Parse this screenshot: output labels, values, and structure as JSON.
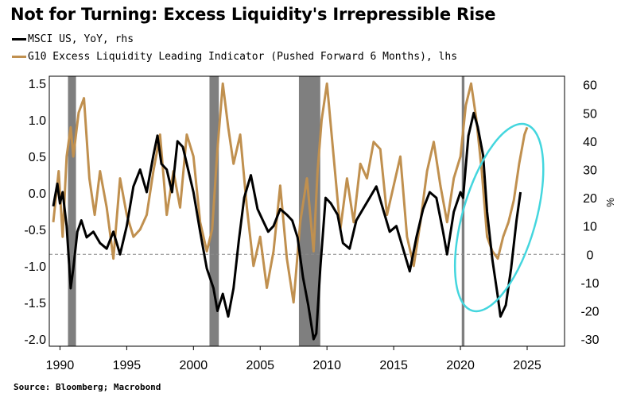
{
  "title": "Not for Turning: Excess Liquidity's Irrepressible Rise",
  "source": "Source: Bloomberg; Macrobond",
  "chart_data": {
    "type": "line",
    "title": "Not for Turning: Excess Liquidity's Irrepressible Rise",
    "xlim": [
      1989.2,
      2027.8
    ],
    "x_ticks": [
      "1990",
      "1995",
      "2000",
      "2005",
      "2010",
      "2015",
      "2020",
      "2025"
    ],
    "left_axis": {
      "ylim": [
        -2.1,
        1.6
      ],
      "ticks": [
        "1.5",
        "1.0",
        "0.5",
        "0.0",
        "-0.5",
        "-1.0",
        "-1.5",
        "-2.0"
      ]
    },
    "right_axis": {
      "ylim": [
        -32.5,
        63
      ],
      "ticks": [
        "60",
        "50",
        "40",
        "30",
        "20",
        "10",
        "0",
        "-10",
        "-20",
        "-30"
      ],
      "unit": "%"
    },
    "zero_line_right": 0,
    "recessions": [
      [
        1990.6,
        1991.2
      ],
      [
        2001.2,
        2001.9
      ],
      [
        2007.9,
        2009.5
      ],
      [
        2020.1,
        2020.3
      ]
    ],
    "annotation": "ellipse highlighting 2021-2025",
    "colors": {
      "msci": "#000000",
      "liquidity": "#c0904f",
      "recession": "#7f7f7f",
      "ellipse": "#44d6de"
    },
    "series": [
      {
        "name": "MSCI US, YoY, rhs",
        "axis": "right",
        "x": [
          1989.5,
          1989.8,
          1990.0,
          1990.2,
          1990.5,
          1990.8,
          1991.0,
          1991.3,
          1991.6,
          1992.0,
          1992.5,
          1993.0,
          1993.5,
          1994.0,
          1994.5,
          1995.0,
          1995.5,
          1996.0,
          1996.5,
          1997.0,
          1997.3,
          1997.6,
          1998.0,
          1998.4,
          1998.8,
          1999.2,
          1999.6,
          2000.0,
          2000.5,
          2001.0,
          2001.5,
          2001.8,
          2002.2,
          2002.6,
          2003.0,
          2003.4,
          2003.8,
          2004.3,
          2004.8,
          2005.2,
          2005.6,
          2006.0,
          2006.5,
          2007.0,
          2007.4,
          2007.8,
          2008.2,
          2008.6,
          2009.0,
          2009.2,
          2009.5,
          2009.9,
          2010.3,
          2010.8,
          2011.2,
          2011.7,
          2012.2,
          2012.7,
          2013.2,
          2013.7,
          2014.2,
          2014.7,
          2015.2,
          2015.7,
          2016.2,
          2016.7,
          2017.2,
          2017.7,
          2018.2,
          2018.7,
          2019.0,
          2019.5,
          2020.0,
          2020.2,
          2020.6,
          2021.0,
          2021.3,
          2021.7,
          2022.0,
          2022.4,
          2022.8,
          2023.0,
          2023.4,
          2023.8,
          2024.2,
          2024.5
        ],
        "values": [
          17,
          25,
          18,
          22,
          10,
          -12,
          -5,
          8,
          12,
          6,
          8,
          4,
          2,
          8,
          0,
          10,
          24,
          30,
          22,
          35,
          42,
          32,
          30,
          22,
          40,
          38,
          30,
          22,
          8,
          -5,
          -12,
          -20,
          -14,
          -22,
          -12,
          5,
          20,
          28,
          16,
          12,
          8,
          10,
          16,
          14,
          12,
          6,
          -8,
          -18,
          -30,
          -28,
          -5,
          20,
          18,
          14,
          4,
          2,
          12,
          16,
          20,
          24,
          16,
          8,
          10,
          2,
          -6,
          6,
          16,
          22,
          20,
          8,
          0,
          15,
          22,
          20,
          42,
          50,
          45,
          35,
          15,
          -2,
          -15,
          -22,
          -18,
          -5,
          12,
          22
        ]
      },
      {
        "name": "G10 Excess Liquidity Leading Indicator (Pushed Forward 6 Months), lhs",
        "axis": "left",
        "x": [
          1989.5,
          1989.9,
          1990.2,
          1990.5,
          1990.8,
          1991.0,
          1991.4,
          1991.8,
          1992.2,
          1992.6,
          1993.0,
          1993.5,
          1994.0,
          1994.5,
          1995.0,
          1995.5,
          1996.0,
          1996.5,
          1997.0,
          1997.5,
          1998.0,
          1998.5,
          1999.0,
          1999.5,
          2000.0,
          2000.5,
          2001.0,
          2001.4,
          2001.8,
          2002.2,
          2002.6,
          2003.0,
          2003.5,
          2004.0,
          2004.5,
          2005.0,
          2005.5,
          2006.0,
          2006.5,
          2007.0,
          2007.5,
          2008.0,
          2008.5,
          2009.0,
          2009.3,
          2009.6,
          2010.0,
          2010.5,
          2011.0,
          2011.5,
          2012.0,
          2012.5,
          2013.0,
          2013.5,
          2014.0,
          2014.5,
          2015.0,
          2015.5,
          2016.0,
          2016.5,
          2017.0,
          2017.5,
          2018.0,
          2018.5,
          2019.0,
          2019.5,
          2020.0,
          2020.4,
          2020.8,
          2021.2,
          2021.6,
          2022.0,
          2022.4,
          2022.8,
          2023.2,
          2023.6,
          2024.0,
          2024.4,
          2024.8,
          2025.0
        ],
        "values": [
          -0.4,
          0.3,
          -0.6,
          0.5,
          0.9,
          0.5,
          1.1,
          1.3,
          0.2,
          -0.3,
          0.3,
          -0.2,
          -0.9,
          0.2,
          -0.3,
          -0.6,
          -0.5,
          -0.3,
          0.3,
          0.8,
          -0.3,
          0.3,
          -0.2,
          0.8,
          0.5,
          -0.4,
          -0.8,
          -0.5,
          0.6,
          1.5,
          0.9,
          0.4,
          0.8,
          -0.2,
          -1.0,
          -0.6,
          -1.3,
          -0.8,
          0.1,
          -0.9,
          -1.5,
          -0.4,
          0.2,
          -0.8,
          0.3,
          1.0,
          1.5,
          0.5,
          -0.5,
          0.2,
          -0.4,
          0.4,
          0.2,
          0.7,
          0.6,
          -0.3,
          0.1,
          0.5,
          -0.6,
          -1.0,
          -0.4,
          0.3,
          0.7,
          0.1,
          -0.4,
          0.2,
          0.5,
          1.2,
          1.5,
          1.0,
          0.3,
          -0.6,
          -0.8,
          -0.9,
          -0.6,
          -0.4,
          -0.1,
          0.4,
          0.8,
          0.9
        ]
      }
    ]
  }
}
